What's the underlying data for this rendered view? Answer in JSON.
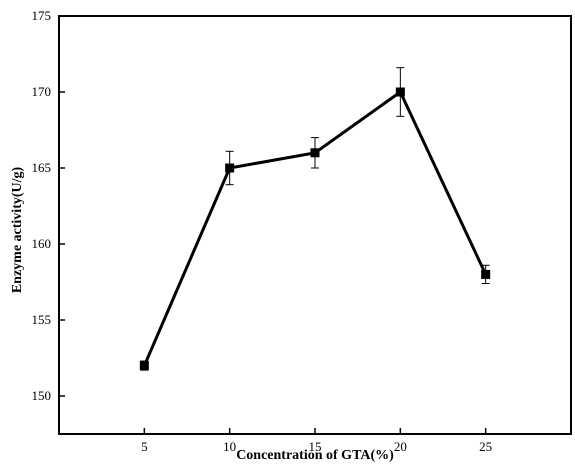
{
  "chart_data": {
    "type": "line",
    "title": "",
    "xlabel": "Concentration of GTA(%)",
    "ylabel": "Enzyme activity(U/g)",
    "xlim": [
      0,
      30
    ],
    "ylim": [
      147.5,
      175
    ],
    "x_ticks": [
      5,
      10,
      15,
      20,
      25
    ],
    "y_ticks": [
      150,
      155,
      160,
      165,
      170,
      175
    ],
    "grid": false,
    "legend": "none",
    "series": [
      {
        "x": [
          5,
          10,
          15,
          20,
          25
        ],
        "y": [
          152,
          165,
          166,
          170,
          158
        ],
        "error": [
          0.3,
          1.1,
          1.0,
          1.6,
          0.6
        ]
      }
    ],
    "line_color": "#000000",
    "marker": "square"
  }
}
